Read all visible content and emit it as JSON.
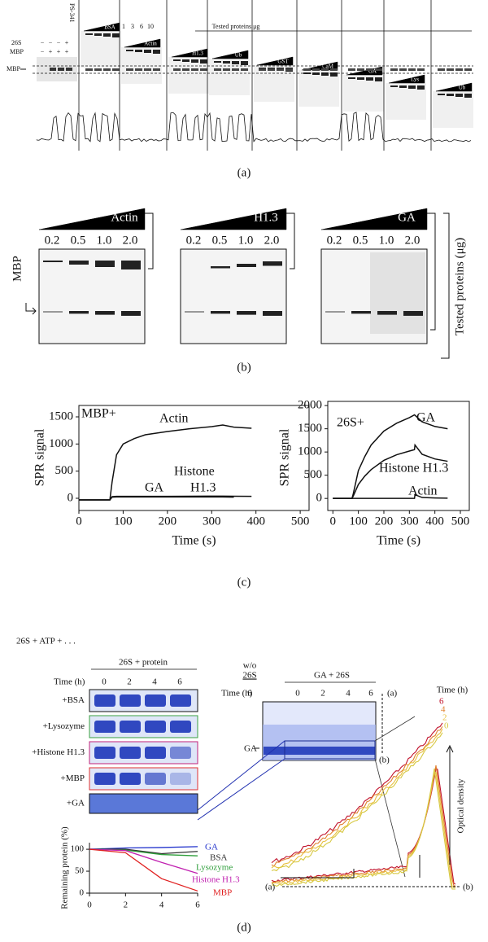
{
  "panel_a": {
    "label": "(a)",
    "rows": [
      "26S",
      "MBP"
    ],
    "signs": [
      [
        "−",
        "−",
        "−",
        "+"
      ],
      [
        "−",
        "+",
        "+",
        "+"
      ]
    ],
    "mbp_label": "MBP",
    "inhibitor": "PS-341",
    "doses": [
      "1",
      "3",
      "6",
      "10"
    ],
    "tested": "Tested proteins μg",
    "proteins": [
      "BSA",
      "Actin",
      "H1.3",
      "Ub",
      "GST",
      "CaM",
      "GA",
      "Lys",
      "Ub"
    ]
  },
  "panel_b": {
    "label": "(b)",
    "mbp": "MBP",
    "tested": "Tested proteins (μg)",
    "gels": [
      {
        "protein": "Actin",
        "doses": [
          "0.2",
          "0.5",
          "1.0",
          "2.0"
        ]
      },
      {
        "protein": "H1.3",
        "doses": [
          "0.2",
          "0.5",
          "1.0",
          "2.0"
        ]
      },
      {
        "protein": "GA",
        "doses": [
          "0.2",
          "0.5",
          "1.0",
          "2.0"
        ]
      }
    ]
  },
  "panel_c": {
    "label": "(c)"
  },
  "chart_data": [
    {
      "type": "line",
      "xlabel": "Time (s)",
      "ylabel": "SPR signal",
      "annotations": [
        "MBP+",
        "Actin",
        "Histone",
        "H1.3",
        "GA"
      ],
      "x": [
        0,
        70,
        75,
        85,
        100,
        125,
        150,
        200,
        250,
        300,
        325,
        350,
        390
      ],
      "series": [
        {
          "name": "Actin",
          "color": "#111111",
          "values": [
            -30,
            -30,
            300,
            800,
            1000,
            1100,
            1170,
            1230,
            1280,
            1320,
            1350,
            1310,
            1290
          ]
        },
        {
          "name": "GA",
          "color": "#111111",
          "values": [
            -30,
            -30,
            20,
            25,
            25,
            25,
            25,
            25,
            25,
            25,
            25,
            20,
            null
          ]
        },
        {
          "name": "Histone H1.3",
          "color": "#111111",
          "values": [
            -30,
            -30,
            30,
            35,
            35,
            35,
            35,
            35,
            38,
            40,
            40,
            38,
            35
          ]
        }
      ],
      "xlim": [
        0,
        520
      ],
      "ylim": [
        -225,
        1710
      ],
      "xticks": [
        0,
        100,
        200,
        300,
        400,
        500
      ],
      "yticks": [
        0,
        500,
        1000,
        1500
      ]
    },
    {
      "type": "line",
      "xlabel": "Time (s)",
      "ylabel": "SPR signal",
      "annotations": [
        "26S+",
        "GA",
        "Histone H1.3",
        "Actin"
      ],
      "x": [
        0,
        75,
        80,
        100,
        125,
        150,
        200,
        250,
        300,
        320,
        322,
        350,
        400,
        450
      ],
      "series": [
        {
          "name": "GA",
          "color": "#111111",
          "values": [
            0,
            0,
            100,
            600,
            900,
            1150,
            1450,
            1620,
            1740,
            1800,
            1790,
            1650,
            1550,
            1500
          ]
        },
        {
          "name": "Histone H1.3",
          "color": "#111111",
          "values": [
            0,
            0,
            50,
            300,
            480,
            620,
            820,
            940,
            1020,
            1050,
            1150,
            950,
            850,
            800
          ]
        },
        {
          "name": "Actin",
          "color": "#111111",
          "values": [
            0,
            0,
            0,
            0,
            0,
            0,
            0,
            0,
            0,
            0,
            80,
            20,
            10,
            5
          ]
        }
      ],
      "xlim": [
        -20,
        535
      ],
      "ylim": [
        -260,
        2090
      ],
      "xticks": [
        0,
        100,
        200,
        300,
        400,
        500
      ],
      "yticks": [
        0,
        500,
        1000,
        1500,
        2000
      ]
    },
    {
      "type": "line",
      "ylabel": "Remaining protein (%)",
      "x": [
        0,
        2,
        4,
        6
      ],
      "series": [
        {
          "name": "GA",
          "color": "#2233cc",
          "values": [
            100,
            103,
            104,
            106
          ]
        },
        {
          "name": "BSA",
          "color": "#333333",
          "values": [
            100,
            100,
            90,
            95
          ]
        },
        {
          "name": "Lysozyme",
          "color": "#2e9e3a",
          "values": [
            100,
            98,
            88,
            85
          ]
        },
        {
          "name": "Histone H1.3",
          "color": "#c020b0",
          "values": [
            100,
            97,
            70,
            45
          ]
        },
        {
          "name": "MBP",
          "color": "#e02020",
          "values": [
            100,
            92,
            33,
            5
          ]
        }
      ],
      "xlim": [
        0,
        6
      ],
      "ylim": [
        0,
        115
      ],
      "xticks": [
        0,
        2,
        4,
        6
      ],
      "yticks": [
        0,
        50,
        100
      ]
    }
  ],
  "panel_d": {
    "label": "(d)",
    "heading": "26S + ATP + . . .",
    "gel_title": "26S + protein",
    "time_label": "Time (h)",
    "times": [
      "0",
      "2",
      "4",
      "6"
    ],
    "rows": [
      "+BSA",
      "+Lysozyme",
      "+Histone H1.3",
      "+MBP",
      "+GA"
    ],
    "ga_gel": {
      "control": [
        "w/o",
        "26S"
      ],
      "title": "GA + 26S",
      "time_label": "Time (h)",
      "times": [
        "6",
        "0",
        "2",
        "4",
        "6"
      ],
      "band": "GA",
      "a": "(a)",
      "b": "(b)"
    },
    "density": {
      "time_label": "Time (h)",
      "times": [
        "6",
        "4",
        "2",
        "0"
      ],
      "axis": "Optical density",
      "a": "(a)",
      "b": "(b)"
    }
  }
}
